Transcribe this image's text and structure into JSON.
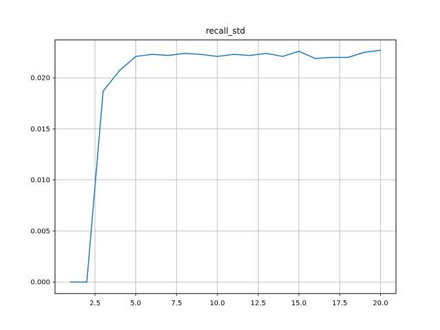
{
  "chart_data": {
    "type": "line",
    "title": "recall_std",
    "xlabel": "",
    "ylabel": "",
    "grid": true,
    "xlim": [
      0.05,
      20.95
    ],
    "ylim": [
      -0.00113,
      0.02372
    ],
    "x_ticks": [
      2.5,
      5.0,
      7.5,
      10.0,
      12.5,
      15.0,
      17.5,
      20.0
    ],
    "x_tick_labels": [
      "2.5",
      "5.0",
      "7.5",
      "10.0",
      "12.5",
      "15.0",
      "17.5",
      "20.0"
    ],
    "y_ticks": [
      0.0,
      0.005,
      0.01,
      0.015,
      0.02
    ],
    "y_tick_labels": [
      "0.000",
      "0.005",
      "0.010",
      "0.015",
      "0.020"
    ],
    "series": [
      {
        "color": "#1f77b4",
        "x": [
          1,
          2,
          3,
          4,
          5,
          6,
          7,
          8,
          9,
          10,
          11,
          12,
          13,
          14,
          15,
          16,
          17,
          18,
          19,
          20
        ],
        "y": [
          0.0,
          0.0,
          0.0187,
          0.0207,
          0.0221,
          0.0223,
          0.0222,
          0.0224,
          0.0223,
          0.0221,
          0.0223,
          0.0222,
          0.0224,
          0.0221,
          0.0226,
          0.0219,
          0.022,
          0.022,
          0.0225,
          0.0227
        ]
      }
    ]
  }
}
